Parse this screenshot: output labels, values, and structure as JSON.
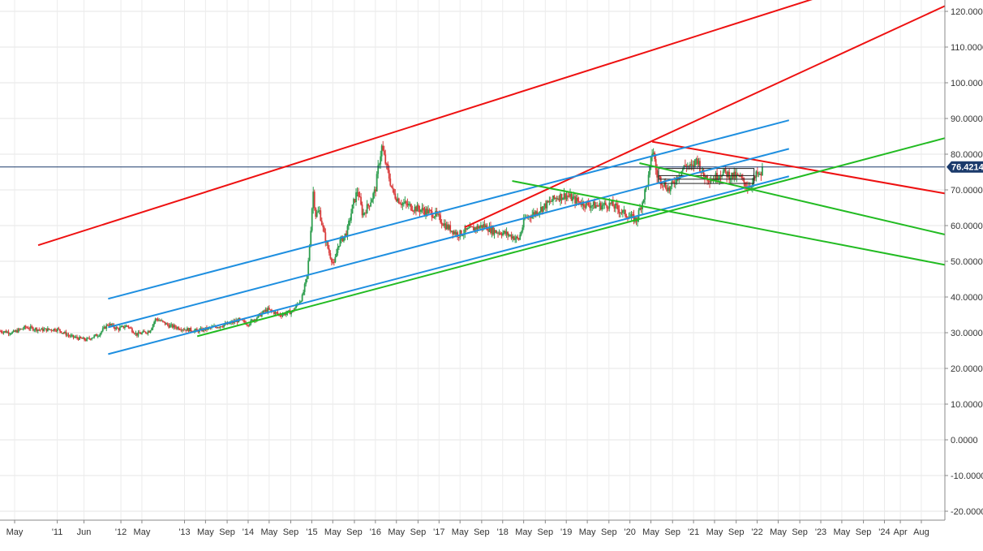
{
  "chart_data": {
    "type": "candlestick",
    "title": "",
    "xlabel": "",
    "ylabel": "",
    "ylim": [
      -22,
      125
    ],
    "grid": true,
    "y_ticks": [
      {
        "value": 120,
        "label": "120.0000"
      },
      {
        "value": 110,
        "label": "110.0000"
      },
      {
        "value": 100,
        "label": "100.0000"
      },
      {
        "value": 90,
        "label": "90.0000"
      },
      {
        "value": 80,
        "label": "80.0000"
      },
      {
        "value": 70,
        "label": "70.0000"
      },
      {
        "value": 60,
        "label": "60.0000"
      },
      {
        "value": 50,
        "label": "50.0000"
      },
      {
        "value": 40,
        "label": "40.0000"
      },
      {
        "value": 30,
        "label": "30.0000"
      },
      {
        "value": 20,
        "label": "20.0000"
      },
      {
        "value": 10,
        "label": "10.0000"
      },
      {
        "value": 0,
        "label": "0.0000"
      },
      {
        "value": -10,
        "label": "-10.0000"
      },
      {
        "value": -20,
        "label": "-20.0000"
      }
    ],
    "x_ticks": [
      {
        "t": 2010.33,
        "label": "May"
      },
      {
        "t": 2011.0,
        "label": "'11"
      },
      {
        "t": 2011.42,
        "label": "Jun"
      },
      {
        "t": 2012.0,
        "label": "'12"
      },
      {
        "t": 2012.33,
        "label": "May"
      },
      {
        "t": 2013.0,
        "label": "'13"
      },
      {
        "t": 2013.33,
        "label": "May"
      },
      {
        "t": 2013.67,
        "label": "Sep"
      },
      {
        "t": 2014.0,
        "label": "'14"
      },
      {
        "t": 2014.33,
        "label": "May"
      },
      {
        "t": 2014.67,
        "label": "Sep"
      },
      {
        "t": 2015.0,
        "label": "'15"
      },
      {
        "t": 2015.33,
        "label": "May"
      },
      {
        "t": 2015.67,
        "label": "Sep"
      },
      {
        "t": 2016.0,
        "label": "'16"
      },
      {
        "t": 2016.33,
        "label": "May"
      },
      {
        "t": 2016.67,
        "label": "Sep"
      },
      {
        "t": 2017.0,
        "label": "'17"
      },
      {
        "t": 2017.33,
        "label": "May"
      },
      {
        "t": 2017.67,
        "label": "Sep"
      },
      {
        "t": 2018.0,
        "label": "'18"
      },
      {
        "t": 2018.33,
        "label": "May"
      },
      {
        "t": 2018.67,
        "label": "Sep"
      },
      {
        "t": 2019.0,
        "label": "'19"
      },
      {
        "t": 2019.33,
        "label": "May"
      },
      {
        "t": 2019.67,
        "label": "Sep"
      },
      {
        "t": 2020.0,
        "label": "'20"
      },
      {
        "t": 2020.33,
        "label": "May"
      },
      {
        "t": 2020.67,
        "label": "Sep"
      },
      {
        "t": 2021.0,
        "label": "'21"
      },
      {
        "t": 2021.33,
        "label": "May"
      },
      {
        "t": 2021.67,
        "label": "Sep"
      },
      {
        "t": 2022.0,
        "label": "'22"
      },
      {
        "t": 2022.33,
        "label": "May"
      },
      {
        "t": 2022.67,
        "label": "Sep"
      },
      {
        "t": 2023.0,
        "label": "'23"
      },
      {
        "t": 2023.33,
        "label": "May"
      },
      {
        "t": 2023.67,
        "label": "Sep"
      },
      {
        "t": 2024.0,
        "label": "'24"
      },
      {
        "t": 2024.25,
        "label": "Apr"
      },
      {
        "t": 2024.58,
        "label": "Aug"
      }
    ],
    "x_range": [
      2010.1,
      2024.95
    ],
    "price_path": [
      [
        2010.1,
        30.5
      ],
      [
        2010.3,
        30.0
      ],
      [
        2010.5,
        31.5
      ],
      [
        2010.75,
        30.8
      ],
      [
        2011.0,
        31.0
      ],
      [
        2011.2,
        29.0
      ],
      [
        2011.45,
        28.0
      ],
      [
        2011.65,
        29.5
      ],
      [
        2011.8,
        32.5
      ],
      [
        2011.95,
        31.0
      ],
      [
        2012.1,
        32.0
      ],
      [
        2012.25,
        29.5
      ],
      [
        2012.45,
        30.5
      ],
      [
        2012.55,
        34.0
      ],
      [
        2012.75,
        32.0
      ],
      [
        2013.0,
        31.0
      ],
      [
        2013.2,
        30.5
      ],
      [
        2013.45,
        31.5
      ],
      [
        2013.7,
        32.5
      ],
      [
        2013.85,
        33.5
      ],
      [
        2014.0,
        32.5
      ],
      [
        2014.15,
        34.5
      ],
      [
        2014.3,
        36.5
      ],
      [
        2014.5,
        35.0
      ],
      [
        2014.7,
        36.0
      ],
      [
        2014.85,
        40.0
      ],
      [
        2014.93,
        46.0
      ],
      [
        2014.98,
        58.0
      ],
      [
        2015.02,
        70.0
      ],
      [
        2015.06,
        63.0
      ],
      [
        2015.12,
        64.0
      ],
      [
        2015.2,
        57.0
      ],
      [
        2015.28,
        52.0
      ],
      [
        2015.35,
        49.0
      ],
      [
        2015.42,
        55.0
      ],
      [
        2015.55,
        58.0
      ],
      [
        2015.65,
        66.0
      ],
      [
        2015.72,
        70.0
      ],
      [
        2015.8,
        63.0
      ],
      [
        2015.9,
        66.0
      ],
      [
        2016.0,
        70.0
      ],
      [
        2016.05,
        77.0
      ],
      [
        2016.1,
        82.0
      ],
      [
        2016.18,
        76.0
      ],
      [
        2016.28,
        69.0
      ],
      [
        2016.4,
        66.5
      ],
      [
        2016.6,
        65.0
      ],
      [
        2016.8,
        64.0
      ],
      [
        2016.95,
        63.0
      ],
      [
        2017.1,
        60.0
      ],
      [
        2017.3,
        57.5
      ],
      [
        2017.5,
        59.0
      ],
      [
        2017.7,
        60.0
      ],
      [
        2017.85,
        58.5
      ],
      [
        2018.0,
        58.0
      ],
      [
        2018.15,
        57.0
      ],
      [
        2018.25,
        56.0
      ],
      [
        2018.35,
        62.0
      ],
      [
        2018.5,
        63.5
      ],
      [
        2018.7,
        66.0
      ],
      [
        2018.85,
        68.0
      ],
      [
        2019.0,
        68.5
      ],
      [
        2019.15,
        67.0
      ],
      [
        2019.3,
        66.0
      ],
      [
        2019.5,
        65.5
      ],
      [
        2019.7,
        66.0
      ],
      [
        2019.9,
        63.5
      ],
      [
        2020.0,
        62.5
      ],
      [
        2020.1,
        61.5
      ],
      [
        2020.2,
        67.0
      ],
      [
        2020.3,
        74.0
      ],
      [
        2020.36,
        82.0
      ],
      [
        2020.42,
        74.0
      ],
      [
        2020.5,
        72.5
      ],
      [
        2020.62,
        70.0
      ],
      [
        2020.75,
        74.0
      ],
      [
        2020.88,
        77.0
      ],
      [
        2020.98,
        76.0
      ],
      [
        2021.05,
        79.0
      ],
      [
        2021.15,
        74.0
      ],
      [
        2021.3,
        73.0
      ],
      [
        2021.45,
        75.0
      ],
      [
        2021.58,
        74.0
      ],
      [
        2021.72,
        73.5
      ],
      [
        2021.85,
        71.0
      ],
      [
        2021.93,
        72.0
      ],
      [
        2022.0,
        74.5
      ],
      [
        2022.05,
        73.5
      ],
      [
        2022.09,
        76.4
      ]
    ],
    "current_price": {
      "value": 76.4214,
      "label": "76.4214"
    },
    "trendlines": [
      {
        "color": "#ee1111",
        "t1": 2010.7,
        "v1": 54.5,
        "t2": 2023.15,
        "v2": 125
      },
      {
        "color": "#ee1111",
        "t1": 2017.4,
        "v1": 59.5,
        "t2": 2024.95,
        "v2": 121.5
      },
      {
        "color": "#ee1111",
        "t1": 2020.35,
        "v1": 83.5,
        "t2": 2024.95,
        "v2": 69.0
      },
      {
        "color": "#1e8fe0",
        "t1": 2011.8,
        "v1": 39.5,
        "t2": 2022.5,
        "v2": 89.5
      },
      {
        "color": "#1e8fe0",
        "t1": 2011.8,
        "v1": 31.5,
        "t2": 2022.5,
        "v2": 81.5
      },
      {
        "color": "#1e8fe0",
        "t1": 2011.8,
        "v1": 24.0,
        "t2": 2022.5,
        "v2": 73.8
      },
      {
        "color": "#22bb22",
        "t1": 2013.2,
        "v1": 29.0,
        "t2": 2024.95,
        "v2": 84.5
      },
      {
        "color": "#22bb22",
        "t1": 2018.15,
        "v1": 72.5,
        "t2": 2024.95,
        "v2": 49.0
      },
      {
        "color": "#22bb22",
        "t1": 2020.15,
        "v1": 77.5,
        "t2": 2024.95,
        "v2": 57.5
      }
    ],
    "boxes": [
      {
        "t1": 2020.45,
        "t2": 2021.95,
        "v1": 76.0,
        "v2": 71.8
      },
      {
        "t1": 2020.45,
        "t2": 2021.95,
        "v1": 74.0,
        "v2": 73.0
      }
    ]
  }
}
